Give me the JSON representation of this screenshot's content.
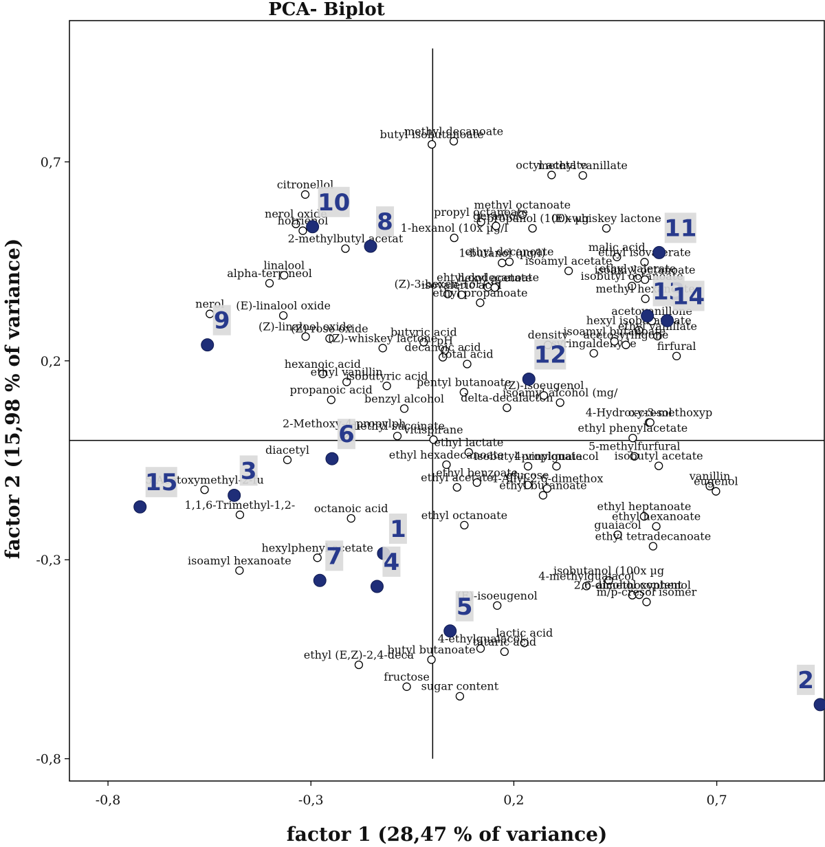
{
  "chart_data": {
    "type": "scatter",
    "title": "PCA- Biplot",
    "xlabel": "factor 1 (28,47 % of variance)",
    "ylabel": "factor 2 (15,98 % of variance)",
    "xlim": [
      -0.895,
      0.965
    ],
    "ylim": [
      -0.856,
      1.055
    ],
    "x_ticks": [
      {
        "value": -0.8,
        "label": "-0,8"
      },
      {
        "value": -0.3,
        "label": "-0,3"
      },
      {
        "value": 0.2,
        "label": "0,2"
      },
      {
        "value": 0.7,
        "label": "0,7"
      }
    ],
    "y_ticks": [
      {
        "value": 0.7,
        "label": "0,7"
      },
      {
        "value": 0.2,
        "label": "0,2"
      },
      {
        "value": -0.3,
        "label": "-0,3"
      },
      {
        "value": -0.8,
        "label": "-0,8"
      }
    ],
    "axis_lines": {
      "x": 0,
      "y": 0
    },
    "grid": false,
    "samples": [
      {
        "label": "1",
        "x": -0.121,
        "y": -0.284
      },
      {
        "label": "2",
        "x": 0.955,
        "y": -0.664
      },
      {
        "label": "3",
        "x": -0.489,
        "y": -0.138
      },
      {
        "label": "4",
        "x": -0.137,
        "y": -0.367
      },
      {
        "label": "5",
        "x": 0.043,
        "y": -0.479
      },
      {
        "label": "6",
        "x": -0.248,
        "y": -0.046
      },
      {
        "label": "7",
        "x": -0.278,
        "y": -0.352
      },
      {
        "label": "8",
        "x": -0.153,
        "y": 0.488
      },
      {
        "label": "9",
        "x": -0.555,
        "y": 0.24
      },
      {
        "label": "10",
        "x": -0.296,
        "y": 0.537
      },
      {
        "label": "11",
        "x": 0.558,
        "y": 0.472
      },
      {
        "label": "12",
        "x": 0.237,
        "y": 0.154
      },
      {
        "label": "13",
        "x": 0.529,
        "y": 0.313
      },
      {
        "label": "14",
        "x": 0.578,
        "y": 0.301
      },
      {
        "label": "15",
        "x": -0.721,
        "y": -0.167
      }
    ],
    "variables": [
      {
        "label": "methyl decanoate",
        "x": 0.052,
        "y": 0.752
      },
      {
        "label": "butyl isobutanoate",
        "x": -0.002,
        "y": 0.744
      },
      {
        "label": "octyl acetate",
        "x": 0.293,
        "y": 0.667
      },
      {
        "label": "methyl vanillate",
        "x": 0.37,
        "y": 0.666
      },
      {
        "label": "citronellol",
        "x": -0.314,
        "y": 0.618
      },
      {
        "label": "methyl octanoate",
        "x": 0.221,
        "y": 0.567
      },
      {
        "label": "(E)-whiskey lactone",
        "x": 0.428,
        "y": 0.533
      },
      {
        "label": "propyl octanoate",
        "x": 0.119,
        "y": 0.549
      },
      {
        "label": "nerol oxide",
        "x": -0.337,
        "y": 0.544
      },
      {
        "label": "hotrienol",
        "x": -0.32,
        "y": 0.527
      },
      {
        "label": "1-hexanol (10x µg/l",
        "x": 0.053,
        "y": 0.509
      },
      {
        "label": "2-methylbutyl acetat",
        "x": -0.215,
        "y": 0.482
      },
      {
        "label": "geraniol",
        "x": 0.156,
        "y": 0.539
      },
      {
        "label": "1-butanol (µg/l)",
        "x": 0.171,
        "y": 0.446
      },
      {
        "label": "malic acid",
        "x": 0.454,
        "y": 0.461
      },
      {
        "label": "ethyl isovalerate",
        "x": 0.522,
        "y": 0.448
      },
      {
        "label": "ethyl valerate",
        "x": 0.505,
        "y": 0.407
      },
      {
        "label": "1-propanol (100x µg",
        "x": 0.246,
        "y": 0.533
      },
      {
        "label": "ethyl decanoate",
        "x": 0.189,
        "y": 0.449
      },
      {
        "label": "isoamyl acetate",
        "x": 0.335,
        "y": 0.426
      },
      {
        "label": "alpha-terpineol",
        "x": -0.402,
        "y": 0.395
      },
      {
        "label": "linalool",
        "x": -0.366,
        "y": 0.415
      },
      {
        "label": "(Z)-3-hexen-1ol (µg",
        "x": 0.037,
        "y": 0.368
      },
      {
        "label": "isobutyl octanoate",
        "x": 0.491,
        "y": 0.388
      },
      {
        "label": "ehtyl dodecanoate",
        "x": 0.136,
        "y": 0.385
      },
      {
        "label": "isovaleric acid",
        "x": 0.071,
        "y": 0.366
      },
      {
        "label": "hexyl acetate",
        "x": 0.153,
        "y": 0.384
      },
      {
        "label": "isoamyl octanoate",
        "x": 0.523,
        "y": 0.404
      },
      {
        "label": "methyl hexanoate",
        "x": 0.524,
        "y": 0.356
      },
      {
        "label": "nerol",
        "x": -0.549,
        "y": 0.318
      },
      {
        "label": "(E)-linalool oxide",
        "x": -0.368,
        "y": 0.314
      },
      {
        "label": "(Z)-linalool oxide",
        "x": -0.313,
        "y": 0.261
      },
      {
        "label": "butyric acid",
        "x": -0.022,
        "y": 0.247
      },
      {
        "label": "ethyl propanoate",
        "x": 0.117,
        "y": 0.346
      },
      {
        "label": "hexyl isobutanoate",
        "x": 0.508,
        "y": 0.277
      },
      {
        "label": "ethyl vanillate",
        "x": 0.554,
        "y": 0.262
      },
      {
        "label": "acetovanillone",
        "x": 0.54,
        "y": 0.3
      },
      {
        "label": "(Z)-rose oxide",
        "x": -0.254,
        "y": 0.256
      },
      {
        "label": "(Z)-whiskey lactone",
        "x": -0.123,
        "y": 0.232
      },
      {
        "label": "pH",
        "x": 0.03,
        "y": 0.226
      },
      {
        "label": "density",
        "x": 0.284,
        "y": 0.24
      },
      {
        "label": "syringaldehyde",
        "x": 0.397,
        "y": 0.219
      },
      {
        "label": "isoamyl butanoate",
        "x": 0.448,
        "y": 0.249
      },
      {
        "label": "acetosyringone",
        "x": 0.476,
        "y": 0.24
      },
      {
        "label": "firfural",
        "x": 0.601,
        "y": 0.212
      },
      {
        "label": "hexanoic acid",
        "x": -0.271,
        "y": 0.167
      },
      {
        "label": "ethyl vanillin",
        "x": -0.212,
        "y": 0.147
      },
      {
        "label": "decanoic acid",
        "x": 0.025,
        "y": 0.209
      },
      {
        "label": "isobutyric acid",
        "x": -0.113,
        "y": 0.137
      },
      {
        "label": "total acid",
        "x": 0.085,
        "y": 0.192
      },
      {
        "label": "propanoic acid",
        "x": -0.25,
        "y": 0.102
      },
      {
        "label": "benzyl alcohol",
        "x": -0.07,
        "y": 0.08
      },
      {
        "label": "pentyl butanoate",
        "x": 0.077,
        "y": 0.121
      },
      {
        "label": "delta-decalacton",
        "x": 0.183,
        "y": 0.082
      },
      {
        "label": "isoamyl alcohol (mg/",
        "x": 0.314,
        "y": 0.095
      },
      {
        "label": "(Z)-isoeugenol",
        "x": 0.274,
        "y": 0.113
      },
      {
        "label": "4-Hydroxy-3-methoxyp",
        "x": 0.533,
        "y": 0.045
      },
      {
        "label": "diethyl succinate",
        "x": -0.087,
        "y": 0.011
      },
      {
        "label": "2-Methoxy-4-propylph",
        "x": -0.218,
        "y": 0.017
      },
      {
        "label": "vitispirane",
        "x": 0.002,
        "y": 0.002
      },
      {
        "label": "o-cresol",
        "x": 0.536,
        "y": 0.045
      },
      {
        "label": "ethyl phenylacetate",
        "x": 0.493,
        "y": 0.006
      },
      {
        "label": "5-methylfurfural",
        "x": 0.497,
        "y": -0.04
      },
      {
        "label": "diacetyl",
        "x": -0.358,
        "y": -0.049
      },
      {
        "label": "ethyl lactate",
        "x": 0.089,
        "y": -0.03
      },
      {
        "label": "ethyl hexadecanoate",
        "x": 0.034,
        "y": -0.061
      },
      {
        "label": "isobutyl propionate",
        "x": 0.235,
        "y": -0.065
      },
      {
        "label": "4-vinylguaiacol",
        "x": 0.305,
        "y": -0.065
      },
      {
        "label": "isobutyl acetate",
        "x": 0.557,
        "y": -0.064
      },
      {
        "label": "5-Acetoxymethyl-2-fu",
        "x": -0.562,
        "y": -0.124
      },
      {
        "label": "ethyl acetate",
        "x": 0.06,
        "y": -0.118
      },
      {
        "label": "ethyl benzoate",
        "x": 0.109,
        "y": -0.106
      },
      {
        "label": "glucose",
        "x": 0.234,
        "y": -0.112
      },
      {
        "label": "ethyl butanoate",
        "x": 0.272,
        "y": -0.138
      },
      {
        "label": "4-Allyl-2,6-dimethox",
        "x": 0.282,
        "y": -0.121
      },
      {
        "label": "vanillin",
        "x": 0.683,
        "y": -0.115
      },
      {
        "label": "eugenol",
        "x": 0.698,
        "y": -0.128
      },
      {
        "label": "1,1,6-Trimethyl-1,2-",
        "x": -0.475,
        "y": -0.187
      },
      {
        "label": "octanoic acid",
        "x": -0.201,
        "y": -0.196
      },
      {
        "label": "ethyl octanoate",
        "x": 0.078,
        "y": -0.213
      },
      {
        "label": "ethyl heptanoate",
        "x": 0.521,
        "y": -0.191
      },
      {
        "label": "ethyl hexanoate",
        "x": 0.551,
        "y": -0.216
      },
      {
        "label": "guaiacol",
        "x": 0.456,
        "y": -0.237
      },
      {
        "label": "ethyl tetradecanoate",
        "x": 0.543,
        "y": -0.266
      },
      {
        "label": "hexylphenyl acetate",
        "x": -0.284,
        "y": -0.295
      },
      {
        "label": "isoamyl hexanoate",
        "x": -0.476,
        "y": -0.327
      },
      {
        "label": "isobutanol (100x µg",
        "x": 0.434,
        "y": -0.352
      },
      {
        "label": "4-methylguaiacol",
        "x": 0.379,
        "y": -0.366
      },
      {
        "label": "(E)-isoeugenol",
        "x": 0.159,
        "y": -0.415
      },
      {
        "label": "2,6-dimethoxyphenol",
        "x": 0.492,
        "y": -0.389
      },
      {
        "label": "alcohol content",
        "x": 0.509,
        "y": -0.388
      },
      {
        "label": "m/p-cresol isomer",
        "x": 0.527,
        "y": -0.406
      },
      {
        "label": "lactic acid",
        "x": 0.226,
        "y": -0.509
      },
      {
        "label": "tataric acid",
        "x": 0.177,
        "y": -0.531
      },
      {
        "label": "4-ethylguaiacol",
        "x": 0.118,
        "y": -0.523
      },
      {
        "label": "butyl butanoate",
        "x": -0.003,
        "y": -0.551
      },
      {
        "label": "ethyl (E,Z)-2,4-deca",
        "x": -0.182,
        "y": -0.564
      },
      {
        "label": "fructose",
        "x": -0.064,
        "y": -0.619
      },
      {
        "label": "sugar content",
        "x": 0.067,
        "y": -0.643
      }
    ]
  }
}
